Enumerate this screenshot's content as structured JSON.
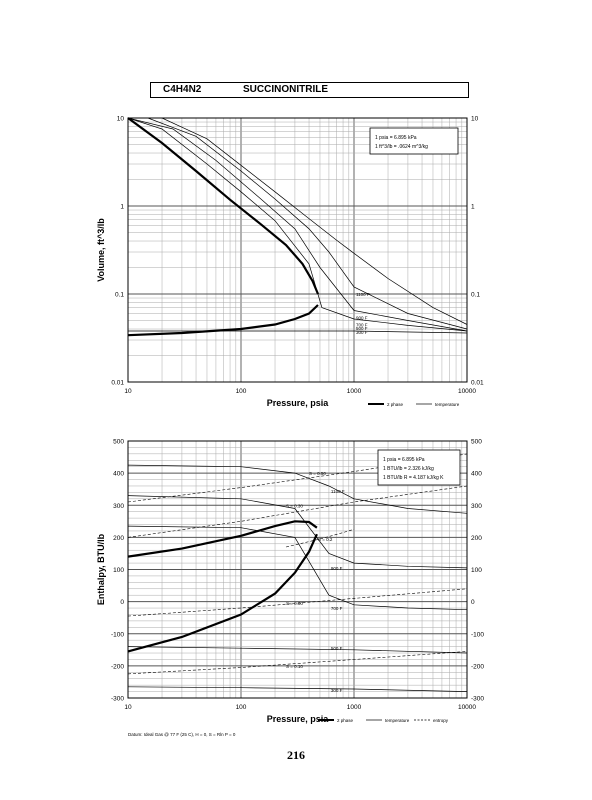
{
  "header": {
    "formula": "C4H4N2",
    "name": "SUCCINONITRILE"
  },
  "page_number": "216",
  "chart_data": [
    {
      "type": "line",
      "scale": "log-log",
      "xlabel": "Pressure,  psia",
      "ylabel": "Volume, ft^3/lb",
      "xlim": [
        10,
        10000
      ],
      "ylim": [
        0.01,
        10
      ],
      "x_ticks": [
        "10",
        "100",
        "1000",
        "10000"
      ],
      "y_ticks": [
        "0.01",
        "0.1",
        "1",
        "10"
      ],
      "grid": true,
      "info_box": [
        "1 psia = 6.895 kPa",
        "1 ft^3/lb = .0624 m^3/kg"
      ],
      "legend": [
        {
          "label": "2 phase",
          "style": "heavy"
        },
        {
          "label": "temperature",
          "style": "thin"
        }
      ],
      "two_phase": {
        "liquid": {
          "x": [
            10,
            30,
            100,
            200,
            300,
            400,
            480
          ],
          "y": [
            0.034,
            0.036,
            0.04,
            0.045,
            0.052,
            0.06,
            0.075
          ]
        },
        "vapor": {
          "x": [
            10,
            20,
            40,
            80,
            150,
            250,
            350,
            430,
            480
          ],
          "y": [
            10,
            5.2,
            2.5,
            1.18,
            0.62,
            0.36,
            0.22,
            0.14,
            0.1
          ]
        }
      },
      "isotherms": [
        {
          "name": "1100 F",
          "x": [
            10,
            20,
            50,
            100,
            200,
            400,
            700,
            1000,
            2000,
            5000,
            10000
          ],
          "y": [
            10,
            10,
            5.8,
            2.9,
            1.45,
            0.72,
            0.41,
            0.29,
            0.15,
            0.07,
            0.045
          ]
        },
        {
          "name": "900 F",
          "x": [
            10,
            15,
            40,
            100,
            200,
            400,
            600,
            1000,
            3000,
            10000
          ],
          "y": [
            10,
            10,
            6.2,
            2.5,
            1.2,
            0.55,
            0.3,
            0.12,
            0.06,
            0.04
          ]
        },
        {
          "name": "700 F",
          "x": [
            10,
            25,
            60,
            150,
            300,
            500,
            1000,
            3000,
            10000
          ],
          "y": [
            10,
            7.5,
            3.3,
            1.2,
            0.55,
            0.2,
            0.065,
            0.05,
            0.038
          ]
        },
        {
          "name": "500 F",
          "x": [
            10,
            20,
            50,
            100,
            200,
            400,
            520,
            1000,
            3000,
            10000
          ],
          "y": [
            10,
            7.5,
            3.0,
            1.45,
            0.68,
            0.22,
            0.07,
            0.052,
            0.044,
            0.038
          ]
        },
        {
          "name": "300 F",
          "x": [
            10,
            1000,
            10000
          ],
          "y": [
            0.038,
            0.038,
            0.036
          ]
        }
      ],
      "curve_labels": [
        "1100 F",
        "900 F",
        "700 F",
        "500 F",
        "300 F"
      ]
    },
    {
      "type": "line",
      "scale": "log-linear",
      "xlabel": "Pressure,  psia",
      "ylabel": "Enthalpy, BTU/lb",
      "xlim": [
        10,
        10000
      ],
      "ylim": [
        -300,
        500
      ],
      "x_ticks": [
        "10",
        "100",
        "1000",
        "10000"
      ],
      "y_ticks": [
        "-300",
        "-200",
        "-100",
        "0",
        "100",
        "200",
        "300",
        "400",
        "500"
      ],
      "grid": true,
      "info_box": [
        "1 psia = 6.895 kPa",
        "1 BTU/lb = 2.326 kJ/kg",
        "1 BTU/lb R = 4.187 kJ/kg K"
      ],
      "footnote": "Datum: Ideal Gas @ 77 F (25 C), H = 0, S = Rln P = 0",
      "legend": [
        {
          "label": "2 phase",
          "style": "heavy"
        },
        {
          "label": "temperature",
          "style": "thin"
        },
        {
          "label": "entropy",
          "style": "dashed"
        }
      ],
      "two_phase": {
        "liquid": {
          "x": [
            10,
            30,
            100,
            200,
            300,
            400,
            470
          ],
          "y": [
            -155,
            -110,
            -40,
            25,
            90,
            155,
            210
          ]
        },
        "vapor": {
          "x": [
            10,
            30,
            100,
            200,
            300,
            400,
            470
          ],
          "y": [
            140,
            165,
            205,
            235,
            250,
            248,
            230
          ]
        }
      },
      "isotherms": [
        {
          "name": "1100 F",
          "x": [
            10,
            100,
            300,
            600,
            1000,
            3000,
            10000
          ],
          "y": [
            425,
            420,
            400,
            360,
            320,
            290,
            275
          ]
        },
        {
          "name": "900 F",
          "x": [
            10,
            100,
            300,
            600,
            1000,
            3000,
            10000
          ],
          "y": [
            330,
            320,
            290,
            150,
            120,
            110,
            105
          ]
        },
        {
          "name": "700 F",
          "x": [
            10,
            100,
            300,
            600,
            1000,
            3000,
            10000
          ],
          "y": [
            235,
            230,
            200,
            20,
            -10,
            -20,
            -25
          ]
        },
        {
          "name": "500 F",
          "x": [
            10,
            100,
            1000,
            10000
          ],
          "y": [
            -140,
            -145,
            -150,
            -160
          ]
        },
        {
          "name": "300 F",
          "x": [
            10,
            100,
            1000,
            10000
          ],
          "y": [
            -265,
            -268,
            -272,
            -280
          ]
        }
      ],
      "isentropes": [
        {
          "name": "S = 0.50",
          "x": [
            10,
            100,
            1000,
            10000
          ],
          "y": [
            310,
            355,
            405,
            460
          ]
        },
        {
          "name": "S = 0.30",
          "x": [
            10,
            100,
            1000,
            10000
          ],
          "y": [
            200,
            250,
            310,
            360
          ]
        },
        {
          "name": "S = 0.2",
          "x": [
            250,
            500,
            800,
            1000
          ],
          "y": [
            170,
            195,
            215,
            225
          ]
        },
        {
          "name": "S = 0.00",
          "x": [
            10,
            100,
            1000,
            10000
          ],
          "y": [
            -45,
            -20,
            10,
            40
          ]
        },
        {
          "name": "S = 0.10",
          "x": [
            10,
            100,
            1000,
            10000
          ],
          "y": [
            -225,
            -205,
            -180,
            -155
          ]
        }
      ],
      "curve_labels": [
        "1100 F",
        "900 F",
        "700 F",
        "500 F",
        "300 F"
      ],
      "entropy_labels": [
        "S = 0.50",
        "S = 0.30",
        "S = 0.2",
        "S = 0.00",
        "S = 0.10"
      ]
    }
  ]
}
